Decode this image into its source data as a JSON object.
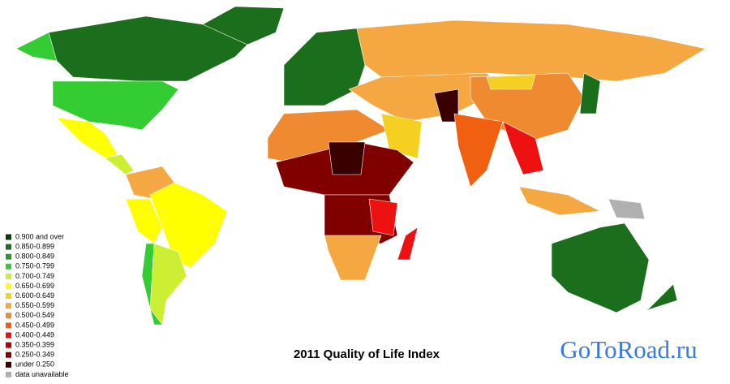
{
  "title": "2011 Quality of Life Index",
  "watermark": "GoToRoad.ru",
  "legend": [
    {
      "label": "0.900 and over",
      "color": "#0b3b0b"
    },
    {
      "label": "0.850-0.899",
      "color": "#1b6e1b"
    },
    {
      "label": "0.800-0.849",
      "color": "#2a9a2a"
    },
    {
      "label": "0.750-0.799",
      "color": "#33cc33"
    },
    {
      "label": "0.700-0.749",
      "color": "#ccee33"
    },
    {
      "label": "0.650-0.699",
      "color": "#ffff00"
    },
    {
      "label": "0.600-0.649",
      "color": "#f5d020"
    },
    {
      "label": "0.550-0.599",
      "color": "#f5a742"
    },
    {
      "label": "0.500-0.549",
      "color": "#f08a30"
    },
    {
      "label": "0.450-0.499",
      "color": "#f06010"
    },
    {
      "label": "0.400-0.449",
      "color": "#ee1111"
    },
    {
      "label": "0.350-0.399",
      "color": "#b00000"
    },
    {
      "label": "0.250-0.349",
      "color": "#800000"
    },
    {
      "label": "under 0.250",
      "color": "#3a0000"
    },
    {
      "label": "data unavailable",
      "color": "#b0b0b0"
    }
  ]
}
